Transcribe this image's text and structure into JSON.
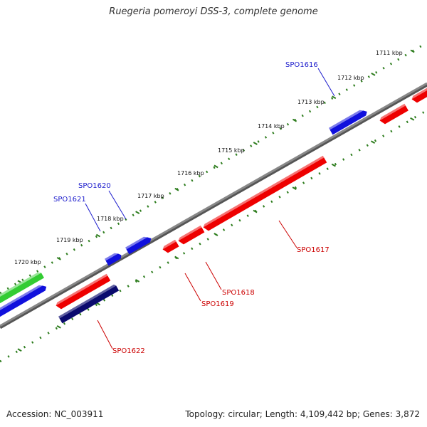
{
  "title": "Ruegeria pomeroyi DSS-3, complete genome",
  "footer": {
    "accession": "Accession: NC_003911",
    "stats": "Topology: circular; Length: 4,109,442 bp; Genes: 3,872"
  },
  "colors": {
    "backbone": "#888888",
    "tick": "#2e7d1e",
    "forward": "#1010dd",
    "reverse": "#ee0000",
    "dark": "#0a0a6e",
    "green": "#33cc33",
    "label_forward": "#1a1acc",
    "label_reverse": "#cc0000"
  },
  "kbp_labels": [
    "1711 kbp",
    "1712 kbp",
    "1713 kbp",
    "1714 kbp",
    "1715 kbp",
    "1716 kbp",
    "1717 kbp",
    "1718 kbp",
    "1719 kbp",
    "1720 kbp"
  ],
  "gene_labels": {
    "spo1616": "SPO1616",
    "spo1617": "SPO1617",
    "spo1618": "SPO1618",
    "spo1619": "SPO1619",
    "spo1620": "SPO1620",
    "spo1621": "SPO1621",
    "spo1622": "SPO1622"
  }
}
